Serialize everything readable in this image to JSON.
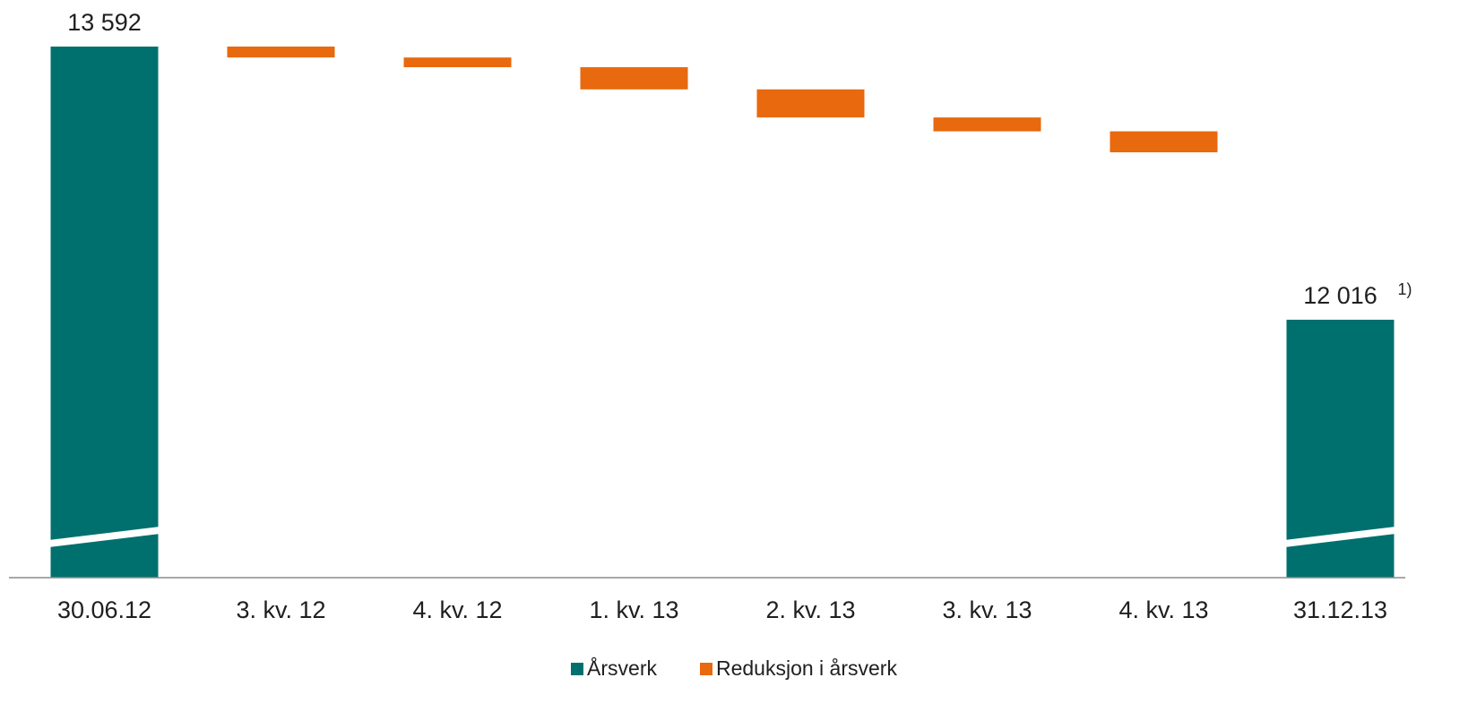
{
  "chart_data": {
    "type": "bar",
    "subtype": "waterfall",
    "categories": [
      "30.06.12",
      "3. kv. 12",
      "4. kv. 12",
      "1. kv. 13",
      "2. kv. 13",
      "3. kv. 13",
      "4. kv. 13",
      "31.12.13"
    ],
    "series": [
      {
        "name": "Årsverk",
        "color": "#00706E",
        "role": "total",
        "values": [
          13592,
          null,
          null,
          null,
          null,
          null,
          null,
          12016
        ]
      },
      {
        "name": "Reduksjon i årsverk",
        "color": "#E8690E",
        "role": "decrease",
        "values": [
          null,
          -63,
          -56,
          -128,
          -162,
          -80,
          -121,
          null
        ]
      }
    ],
    "data_labels": [
      {
        "category": "30.06.12",
        "text": "13 592"
      },
      {
        "category": "31.12.13",
        "text": "12 016",
        "footnote": "1)"
      }
    ],
    "axis_break": true,
    "ylim": [
      11500,
      13600
    ],
    "legend_position": "bottom-center",
    "grid": false
  }
}
